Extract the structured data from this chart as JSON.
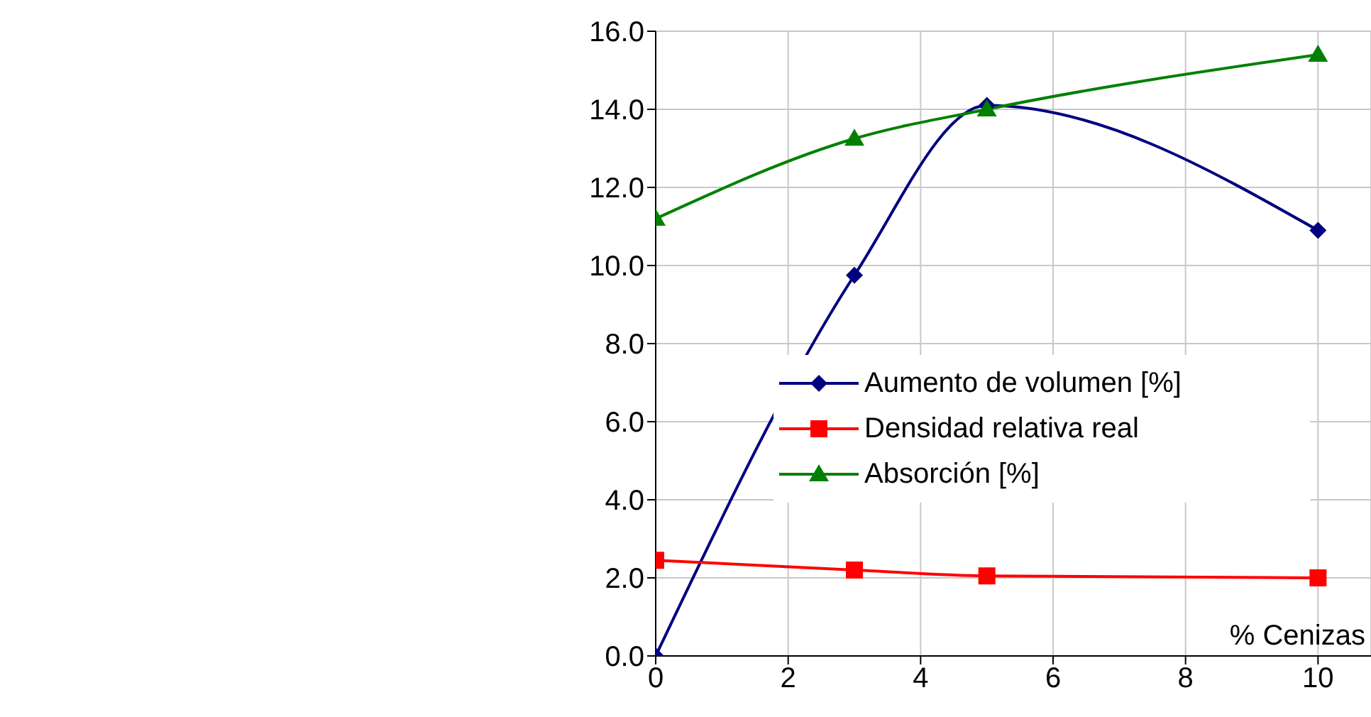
{
  "chart_data": {
    "type": "line",
    "xlabel": "% Cenizas",
    "x": [
      0,
      3,
      5,
      10
    ],
    "series": [
      {
        "name": "Aumento de volumen [%]",
        "color": "#000080",
        "marker": "diamond",
        "values": [
          0.0,
          9.75,
          14.1,
          10.9
        ]
      },
      {
        "name": "Densidad relativa real",
        "color": "#ff0000",
        "marker": "square",
        "values": [
          2.45,
          2.2,
          2.05,
          2.0
        ]
      },
      {
        "name": "Absorción [%]",
        "color": "#008000",
        "marker": "triangle",
        "values": [
          11.2,
          13.25,
          14.0,
          15.4
        ]
      }
    ],
    "xlim": [
      0,
      10.8
    ],
    "xticks": [
      0,
      2,
      4,
      6,
      8,
      10
    ],
    "ylim": [
      0,
      16
    ],
    "yticks": [
      {
        "value": 0,
        "label": "0.0"
      },
      {
        "value": 2,
        "label": "2.0"
      },
      {
        "value": 4,
        "label": "4.0"
      },
      {
        "value": 6,
        "label": "6.0"
      },
      {
        "value": 8,
        "label": "8.0"
      },
      {
        "value": 10,
        "label": "10.0"
      },
      {
        "value": 12,
        "label": "12.0"
      },
      {
        "value": 14,
        "label": "14.0"
      },
      {
        "value": 16,
        "label": "16.0"
      }
    ],
    "grid": true,
    "legend": "bottom right",
    "line_style": "solid"
  }
}
